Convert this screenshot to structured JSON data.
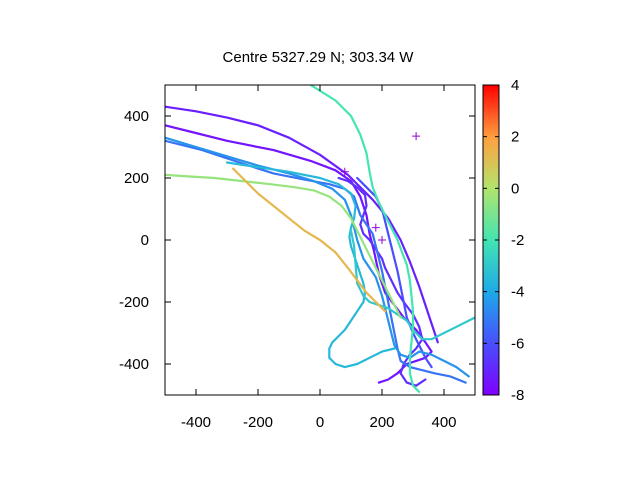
{
  "chart_data": {
    "type": "line",
    "title": "Centre 5327.29 N; 303.34  W",
    "xlabel": "",
    "ylabel": "",
    "xlim": [
      -500,
      500
    ],
    "ylim": [
      -500,
      500
    ],
    "x_ticks": [
      -400,
      -200,
      0,
      200,
      400
    ],
    "y_ticks": [
      -400,
      -200,
      0,
      200,
      400
    ],
    "colorbar": {
      "min": -8,
      "max": 4,
      "ticks": [
        4,
        2,
        0,
        -2,
        -4,
        -6,
        -8
      ],
      "palette": "rainbow"
    },
    "grid": false,
    "legend": "none",
    "tracks": [
      {
        "value": -7.5,
        "points": [
          [
            -500,
            370
          ],
          [
            -420,
            350
          ],
          [
            -300,
            320
          ],
          [
            -150,
            290
          ],
          [
            -30,
            255
          ],
          [
            50,
            225
          ],
          [
            100,
            190
          ],
          [
            130,
            140
          ],
          [
            150,
            80
          ],
          [
            160,
            20
          ],
          [
            175,
            -40
          ],
          [
            190,
            -110
          ],
          [
            210,
            -170
          ],
          [
            240,
            -210
          ],
          [
            270,
            -250
          ],
          [
            310,
            -290
          ],
          [
            340,
            -330
          ],
          [
            360,
            -360
          ],
          [
            340,
            -380
          ],
          [
            310,
            -390
          ],
          [
            280,
            -400
          ],
          [
            250,
            -430
          ],
          [
            220,
            -450
          ],
          [
            190,
            -460
          ]
        ]
      },
      {
        "value": -7.2,
        "points": [
          [
            -500,
            430
          ],
          [
            -400,
            415
          ],
          [
            -300,
            395
          ],
          [
            -200,
            370
          ],
          [
            -100,
            330
          ],
          [
            0,
            275
          ],
          [
            90,
            210
          ],
          [
            170,
            130
          ],
          [
            220,
            70
          ],
          [
            260,
            0
          ],
          [
            290,
            -70
          ],
          [
            320,
            -150
          ],
          [
            350,
            -240
          ],
          [
            380,
            -330
          ]
        ]
      },
      {
        "value": -6.8,
        "points": [
          [
            60,
            200
          ],
          [
            90,
            190
          ],
          [
            120,
            170
          ],
          [
            145,
            145
          ],
          [
            150,
            110
          ],
          [
            140,
            80
          ],
          [
            130,
            50
          ],
          [
            140,
            20
          ],
          [
            160,
            0
          ],
          [
            180,
            -30
          ],
          [
            200,
            -60
          ],
          [
            210,
            -90
          ],
          [
            230,
            -130
          ],
          [
            250,
            -170
          ],
          [
            270,
            -200
          ],
          [
            300,
            -240
          ],
          [
            320,
            -280
          ],
          [
            330,
            -320
          ],
          [
            310,
            -350
          ],
          [
            290,
            -370
          ],
          [
            270,
            -400
          ],
          [
            260,
            -430
          ],
          [
            280,
            -460
          ],
          [
            310,
            -470
          ],
          [
            340,
            -450
          ]
        ]
      },
      {
        "value": -6.0,
        "points": [
          [
            120,
            200
          ],
          [
            150,
            170
          ],
          [
            180,
            140
          ],
          [
            200,
            100
          ],
          [
            210,
            60
          ],
          [
            220,
            20
          ],
          [
            230,
            -20
          ],
          [
            240,
            -60
          ],
          [
            250,
            -100
          ],
          [
            260,
            -150
          ],
          [
            270,
            -200
          ],
          [
            280,
            -250
          ],
          [
            300,
            -300
          ],
          [
            320,
            -340
          ],
          [
            340,
            -380
          ],
          [
            360,
            -410
          ]
        ]
      },
      {
        "value": -5.2,
        "points": [
          [
            -500,
            320
          ],
          [
            -380,
            290
          ],
          [
            -260,
            250
          ],
          [
            -150,
            215
          ],
          [
            -50,
            195
          ],
          [
            30,
            180
          ],
          [
            80,
            165
          ],
          [
            110,
            140
          ],
          [
            120,
            110
          ],
          [
            130,
            80
          ],
          [
            150,
            50
          ],
          [
            170,
            20
          ],
          [
            180,
            -20
          ],
          [
            190,
            -60
          ],
          [
            200,
            -100
          ],
          [
            210,
            -150
          ],
          [
            220,
            -200
          ],
          [
            230,
            -250
          ],
          [
            240,
            -300
          ],
          [
            250,
            -350
          ],
          [
            260,
            -390
          ],
          [
            290,
            -410
          ],
          [
            330,
            -420
          ],
          [
            370,
            -430
          ],
          [
            420,
            -440
          ],
          [
            470,
            -460
          ]
        ]
      },
      {
        "value": -4.5,
        "points": [
          [
            -500,
            330
          ],
          [
            -400,
            300
          ],
          [
            -300,
            270
          ],
          [
            -200,
            240
          ],
          [
            -100,
            215
          ],
          [
            -20,
            190
          ],
          [
            40,
            165
          ],
          [
            80,
            130
          ],
          [
            100,
            80
          ],
          [
            110,
            40
          ],
          [
            120,
            0
          ],
          [
            130,
            -30
          ],
          [
            140,
            -60
          ],
          [
            160,
            -90
          ],
          [
            180,
            -120
          ],
          [
            190,
            -150
          ],
          [
            200,
            -180
          ],
          [
            210,
            -220
          ],
          [
            220,
            -260
          ],
          [
            230,
            -300
          ],
          [
            240,
            -340
          ],
          [
            260,
            -370
          ],
          [
            290,
            -380
          ],
          [
            320,
            -360
          ],
          [
            360,
            -370
          ],
          [
            400,
            -390
          ],
          [
            440,
            -410
          ],
          [
            480,
            -440
          ]
        ]
      },
      {
        "value": -3.5,
        "points": [
          [
            -300,
            250
          ],
          [
            -200,
            235
          ],
          [
            -100,
            220
          ],
          [
            0,
            200
          ],
          [
            60,
            180
          ],
          [
            100,
            150
          ],
          [
            115,
            110
          ],
          [
            110,
            70
          ],
          [
            100,
            40
          ],
          [
            95,
            10
          ],
          [
            100,
            -20
          ],
          [
            110,
            -50
          ],
          [
            120,
            -80
          ],
          [
            130,
            -110
          ],
          [
            140,
            -140
          ],
          [
            145,
            -170
          ],
          [
            140,
            -200
          ],
          [
            120,
            -230
          ],
          [
            100,
            -260
          ],
          [
            80,
            -290
          ],
          [
            60,
            -310
          ],
          [
            40,
            -330
          ],
          [
            30,
            -350
          ],
          [
            30,
            -380
          ],
          [
            50,
            -400
          ],
          [
            80,
            -410
          ],
          [
            120,
            -400
          ],
          [
            160,
            -380
          ],
          [
            200,
            -360
          ],
          [
            240,
            -350
          ]
        ]
      },
      {
        "value": -3.0,
        "points": [
          [
            100,
            30
          ],
          [
            110,
            -20
          ],
          [
            115,
            -80
          ],
          [
            120,
            -140
          ],
          [
            140,
            -180
          ],
          [
            160,
            -200
          ],
          [
            190,
            -210
          ],
          [
            220,
            -220
          ],
          [
            250,
            -240
          ],
          [
            280,
            -260
          ],
          [
            300,
            -290
          ],
          [
            330,
            -320
          ],
          [
            360,
            -320
          ],
          [
            400,
            -300
          ],
          [
            440,
            -280
          ],
          [
            480,
            -260
          ],
          [
            500,
            -250
          ]
        ]
      },
      {
        "value": -2.0,
        "points": [
          [
            -30,
            500
          ],
          [
            50,
            450
          ],
          [
            100,
            400
          ],
          [
            130,
            340
          ],
          [
            150,
            280
          ],
          [
            160,
            220
          ],
          [
            170,
            170
          ],
          [
            190,
            120
          ],
          [
            210,
            80
          ],
          [
            230,
            40
          ],
          [
            250,
            0
          ],
          [
            265,
            -40
          ],
          [
            280,
            -80
          ],
          [
            290,
            -130
          ],
          [
            295,
            -180
          ],
          [
            300,
            -230
          ],
          [
            300,
            -280
          ],
          [
            295,
            -330
          ],
          [
            290,
            -380
          ],
          [
            290,
            -430
          ],
          [
            300,
            -470
          ],
          [
            320,
            -490
          ]
        ]
      },
      {
        "value": -0.5,
        "points": [
          [
            -500,
            210
          ],
          [
            -420,
            205
          ],
          [
            -340,
            200
          ],
          [
            -250,
            190
          ],
          [
            -160,
            180
          ],
          [
            -80,
            170
          ],
          [
            -20,
            160
          ],
          [
            30,
            140
          ],
          [
            70,
            110
          ],
          [
            100,
            70
          ],
          [
            120,
            30
          ],
          [
            140,
            -10
          ],
          [
            160,
            -50
          ],
          [
            180,
            -90
          ],
          [
            200,
            -130
          ],
          [
            220,
            -170
          ],
          [
            240,
            -210
          ],
          [
            260,
            -250
          ]
        ]
      },
      {
        "value": 1.3,
        "points": [
          [
            -280,
            230
          ],
          [
            -240,
            190
          ],
          [
            -200,
            150
          ],
          [
            -150,
            110
          ],
          [
            -100,
            70
          ],
          [
            -50,
            30
          ],
          [
            0,
            0
          ],
          [
            50,
            -40
          ],
          [
            90,
            -90
          ],
          [
            120,
            -130
          ],
          [
            150,
            -170
          ],
          [
            180,
            -200
          ],
          [
            210,
            -230
          ]
        ]
      }
    ],
    "markers": [
      [
        80,
        220
      ],
      [
        310,
        335
      ],
      [
        200,
        0
      ],
      [
        180,
        40
      ]
    ]
  }
}
